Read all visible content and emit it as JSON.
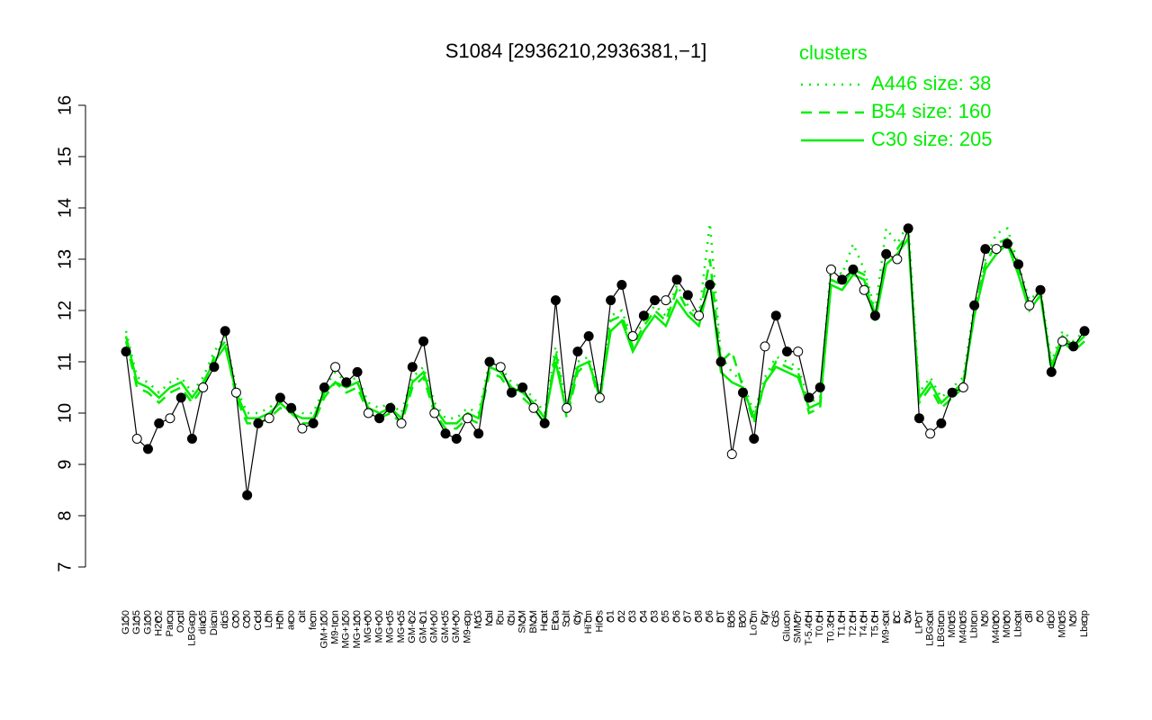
{
  "chart_data": {
    "type": "line",
    "title": "S1084 [2936210,2936381,−1]",
    "legend_title": "clusters",
    "legend_position": "top-right",
    "categories": [
      "G150",
      "G135",
      "G180",
      "H2O2",
      "Paraq",
      "Oxctl",
      "LBGexp",
      "dia15",
      "Diami",
      "dia5",
      "C90",
      "C30",
      "Cold",
      "LPh",
      "HPh",
      "aero",
      "nit",
      "ferm",
      "GM+150",
      "M9-tran",
      "MG+150",
      "MG+120",
      "MG+90",
      "MG+60",
      "MG+45",
      "MG+15",
      "GM-0.2",
      "GM-0.1",
      "GM+10",
      "GM+45",
      "GM+90",
      "M9-exp",
      "M/G",
      "Mal",
      "Fru",
      "Glu",
      "SMM",
      "BMM",
      "Heat",
      "Etha",
      "Salt",
      "Gly",
      "HiTm",
      "HiOs",
      "S1",
      "S2",
      "S3",
      "S4",
      "S3",
      "S5",
      "S6",
      "S7",
      "S8",
      "S6",
      "BT",
      "B36",
      "B60",
      "LoTm",
      "Pyr",
      "G/S",
      "Glucon",
      "SMMPr",
      "T-5.40H",
      "T0.0H",
      "T0.30H",
      "T1.0H",
      "T2.0H",
      "T4.0H",
      "T5.0H",
      "M9-stat",
      "BC",
      "Sw",
      "LPhT",
      "LBGstat",
      "LBGtran",
      "M0t45",
      "M40t45",
      "Lbtran",
      "Mt0",
      "M40t90",
      "M0t90",
      "Lbstat",
      "BI",
      "S0",
      "dia0",
      "M0t45",
      "Mt0",
      "Lbexp"
    ],
    "values": [
      11.2,
      9.5,
      9.3,
      9.8,
      9.9,
      10.3,
      9.5,
      10.5,
      10.9,
      11.6,
      10.4,
      8.4,
      9.8,
      9.9,
      10.3,
      10.1,
      9.7,
      9.8,
      10.5,
      10.9,
      10.6,
      10.8,
      10.0,
      9.9,
      10.1,
      9.8,
      10.9,
      11.4,
      10.0,
      9.6,
      9.5,
      9.9,
      9.6,
      11.0,
      10.9,
      10.4,
      10.5,
      10.1,
      9.8,
      12.2,
      10.1,
      11.2,
      11.5,
      10.3,
      12.2,
      12.5,
      11.5,
      11.9,
      12.2,
      12.2,
      12.6,
      12.3,
      11.9,
      12.5,
      11.0,
      9.2,
      10.4,
      9.5,
      11.3,
      11.9,
      11.2,
      11.2,
      10.3,
      10.5,
      12.8,
      12.6,
      12.8,
      12.4,
      11.9,
      13.1,
      13.0,
      13.6,
      9.9,
      9.6,
      9.8,
      10.4,
      10.5,
      12.1,
      13.2,
      13.2,
      13.3,
      12.9,
      12.1,
      12.4,
      10.8,
      11.4,
      11.3,
      11.6
    ],
    "color": "#000000",
    "series": [
      {
        "name": "A446 size: 38",
        "color": "#00ee00",
        "line_style": "dotted",
        "values": [
          11.6,
          10.7,
          10.6,
          10.4,
          10.6,
          10.7,
          10.4,
          10.7,
          11.2,
          11.5,
          10.5,
          10.0,
          10.0,
          10.1,
          10.3,
          10.1,
          10.0,
          10.0,
          10.5,
          10.8,
          10.6,
          10.7,
          10.2,
          10.1,
          10.2,
          10.0,
          10.7,
          10.9,
          10.2,
          9.9,
          9.9,
          10.1,
          10.0,
          11.0,
          10.9,
          10.6,
          10.5,
          10.3,
          10.0,
          11.3,
          10.1,
          11.0,
          11.1,
          10.4,
          11.9,
          12.0,
          11.4,
          11.8,
          12.1,
          11.9,
          12.5,
          12.1,
          11.9,
          13.7,
          11.1,
          10.8,
          10.6,
          10.0,
          10.7,
          11.1,
          11.0,
          10.9,
          10.2,
          10.3,
          12.9,
          12.7,
          13.3,
          12.8,
          12.0,
          13.6,
          13.3,
          13.7,
          10.4,
          10.7,
          10.3,
          10.5,
          10.7,
          12.1,
          13.0,
          13.5,
          13.6,
          12.9,
          12.2,
          12.4,
          11.0,
          11.6,
          11.4,
          11.6
        ]
      },
      {
        "name": "B54 size: 160",
        "color": "#00ee00",
        "line_style": "dashed",
        "values": [
          11.4,
          10.5,
          10.4,
          10.2,
          10.4,
          10.5,
          10.2,
          10.5,
          11.1,
          11.4,
          10.3,
          9.8,
          9.8,
          9.9,
          10.1,
          10.0,
          9.8,
          9.8,
          10.3,
          10.6,
          10.4,
          10.5,
          10.0,
          9.9,
          10.0,
          9.8,
          10.5,
          10.7,
          10.0,
          9.7,
          9.7,
          9.9,
          9.8,
          10.8,
          10.7,
          10.4,
          10.3,
          10.1,
          9.8,
          11.2,
          9.9,
          10.8,
          11.0,
          10.2,
          11.8,
          11.9,
          11.3,
          11.7,
          12.0,
          11.8,
          12.4,
          12.0,
          11.8,
          13.0,
          11.0,
          11.2,
          10.5,
          9.8,
          10.6,
          11.0,
          10.9,
          10.8,
          10.0,
          10.1,
          12.6,
          12.5,
          12.8,
          12.7,
          11.9,
          13.1,
          13.2,
          13.5,
          10.2,
          10.5,
          10.1,
          10.3,
          10.5,
          12.0,
          12.9,
          13.3,
          13.4,
          12.8,
          12.1,
          12.4,
          10.8,
          11.4,
          11.2,
          11.4
        ]
      },
      {
        "name": "C30 size: 205",
        "color": "#00ee00",
        "line_style": "solid",
        "values": [
          11.5,
          10.6,
          10.5,
          10.3,
          10.5,
          10.6,
          10.3,
          10.6,
          11.0,
          11.3,
          10.4,
          9.9,
          9.9,
          10.0,
          10.2,
          10.0,
          9.9,
          9.9,
          10.4,
          10.6,
          10.5,
          10.6,
          10.1,
          10.0,
          10.1,
          9.9,
          10.6,
          10.8,
          10.1,
          9.8,
          9.8,
          10.0,
          9.9,
          10.9,
          10.8,
          10.5,
          10.4,
          10.2,
          9.9,
          11.0,
          10.0,
          10.9,
          11.0,
          10.3,
          11.6,
          11.8,
          11.2,
          11.6,
          11.9,
          11.7,
          12.2,
          11.9,
          11.7,
          12.6,
          10.8,
          10.6,
          10.5,
          9.9,
          10.6,
          10.9,
          10.8,
          10.7,
          10.1,
          10.2,
          12.5,
          12.4,
          12.7,
          12.6,
          11.8,
          12.9,
          13.1,
          13.4,
          10.3,
          10.6,
          10.2,
          10.4,
          10.6,
          11.9,
          12.8,
          13.1,
          13.3,
          12.7,
          12.0,
          12.3,
          10.9,
          11.5,
          11.3,
          11.5
        ]
      }
    ],
    "ylim": [
      7,
      16
    ],
    "yticks": [
      7,
      8,
      9,
      10,
      11,
      12,
      13,
      14,
      15,
      16
    ]
  }
}
